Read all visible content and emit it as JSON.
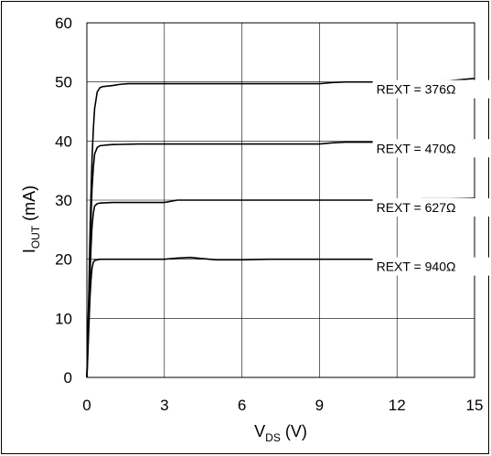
{
  "chart_data": {
    "type": "line",
    "xlabel": {
      "main": "V",
      "sub": "DS",
      "unit": " (V)"
    },
    "ylabel": {
      "main": "I",
      "sub": "OUT",
      "unit": " (mA)"
    },
    "xlim": [
      0,
      15
    ],
    "ylim": [
      0,
      60
    ],
    "xticks": [
      0,
      3,
      6,
      9,
      12,
      15
    ],
    "yticks": [
      0,
      10,
      20,
      30,
      40,
      50,
      60
    ],
    "grid": true,
    "series": [
      {
        "name": "REXT = 376Ω",
        "x": [
          0,
          0.03,
          0.08,
          0.12,
          0.16,
          0.2,
          0.25,
          0.3,
          0.4,
          0.5,
          0.6,
          0.8,
          1.0,
          1.3,
          1.6,
          2,
          3,
          4,
          5,
          6,
          7,
          8,
          9,
          9.5,
          10,
          11,
          12,
          13,
          14,
          15
        ],
        "y": [
          0,
          6,
          15,
          24,
          31,
          37,
          42,
          45.5,
          48.3,
          49.0,
          49.2,
          49.3,
          49.4,
          49.6,
          49.7,
          49.7,
          49.7,
          49.7,
          49.7,
          49.7,
          49.7,
          49.7,
          49.7,
          49.9,
          50.0,
          50.0,
          50.0,
          50.0,
          50.2,
          50.6
        ]
      },
      {
        "name": "REXT = 470Ω",
        "x": [
          0,
          0.03,
          0.08,
          0.12,
          0.16,
          0.2,
          0.25,
          0.3,
          0.4,
          0.5,
          0.7,
          1.0,
          2,
          3,
          4,
          5,
          6,
          7,
          8,
          9,
          9.5,
          10,
          11,
          12,
          13,
          14,
          15
        ],
        "y": [
          0,
          5,
          13,
          21,
          27,
          32,
          35.5,
          37.8,
          38.9,
          39.2,
          39.3,
          39.4,
          39.5,
          39.5,
          39.5,
          39.5,
          39.5,
          39.5,
          39.5,
          39.5,
          39.7,
          39.8,
          39.8,
          39.8,
          39.9,
          40.0,
          40.2
        ]
      },
      {
        "name": "REXT = 627Ω",
        "x": [
          0,
          0.03,
          0.08,
          0.12,
          0.16,
          0.2,
          0.25,
          0.3,
          0.4,
          0.5,
          1.0,
          2,
          3,
          3.5,
          4,
          5,
          6,
          7,
          8,
          9,
          10,
          11,
          12,
          13,
          14,
          15
        ],
        "y": [
          0,
          4,
          11,
          17,
          22,
          25.5,
          27.8,
          29.0,
          29.4,
          29.5,
          29.6,
          29.6,
          29.6,
          30.0,
          30.0,
          30.0,
          30.0,
          30.0,
          30.0,
          30.0,
          30.0,
          30.0,
          30.0,
          30.2,
          30.2,
          30.3
        ]
      },
      {
        "name": "REXT = 940Ω",
        "x": [
          0,
          0.03,
          0.08,
          0.12,
          0.16,
          0.2,
          0.25,
          0.3,
          0.4,
          0.5,
          1.0,
          2,
          3,
          3.5,
          4,
          4.5,
          5,
          6,
          7,
          8,
          9,
          10,
          11,
          12,
          13,
          14,
          15
        ],
        "y": [
          0,
          3,
          9,
          13.5,
          16.5,
          18.5,
          19.5,
          19.8,
          19.9,
          20.0,
          20.0,
          20.0,
          20.0,
          20.2,
          20.3,
          20.1,
          19.9,
          19.9,
          20.0,
          20.0,
          20.0,
          20.0,
          20.0,
          20.0,
          20.0,
          20.0,
          20.1
        ]
      }
    ],
    "annotations": [
      {
        "text": "REXT = 376Ω",
        "x": 11.2,
        "y": 48
      },
      {
        "text": "REXT = 470Ω",
        "x": 11.2,
        "y": 38
      },
      {
        "text": "REXT = 627Ω",
        "x": 11.2,
        "y": 28
      },
      {
        "text": "REXT = 940Ω",
        "x": 11.2,
        "y": 18
      }
    ]
  }
}
